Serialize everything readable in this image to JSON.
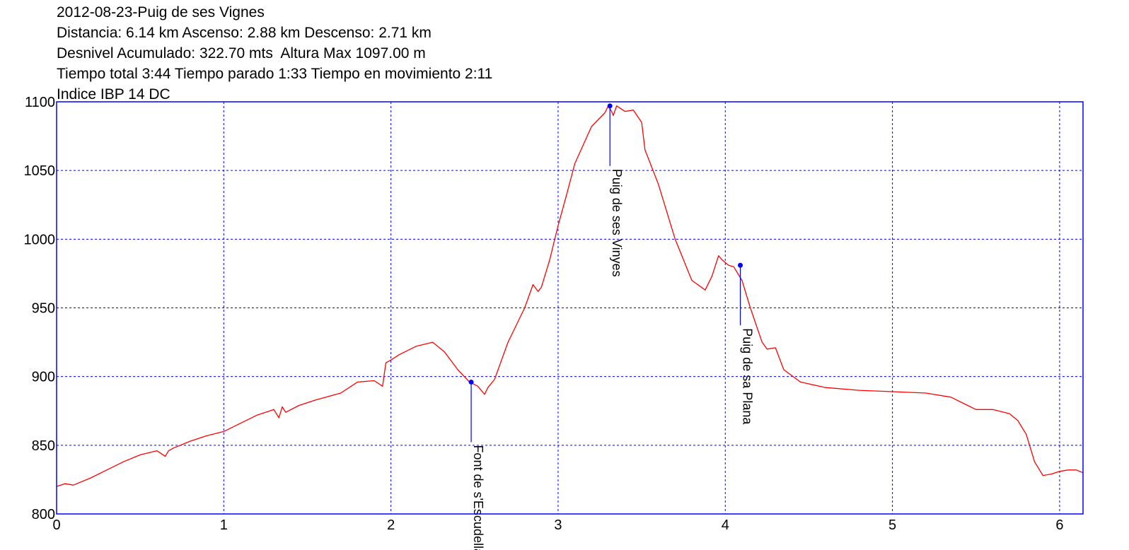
{
  "header": {
    "title": "2012-08-23-Puig de ses Vignes",
    "line2": "Distancia: 6.14 km Ascenso: 2.88 km Descenso: 2.71 km",
    "line3": "Desnivel Acumulado: 322.70 mts  Altura Max 1097.00 m",
    "line4": "Tiempo total 3:44 Tiempo parado 1:33 Tiempo en movimiento 2:11",
    "line5": "Indice IBP 14 DC"
  },
  "chart_data": {
    "type": "line",
    "title": "2012-08-23-Puig de ses Vignes",
    "xlabel": "",
    "ylabel": "",
    "xlim": [
      0,
      6.14
    ],
    "ylim": [
      800,
      1100
    ],
    "x_ticks": [
      0,
      1,
      2,
      3,
      4,
      5,
      6
    ],
    "y_ticks": [
      800,
      850,
      900,
      950,
      1000,
      1050,
      1100
    ],
    "grid": true,
    "colors": {
      "line": "#ff0000",
      "frame": "#0000ff",
      "grid": "#0000ff",
      "marker": "#0000ff"
    },
    "series": [
      {
        "x": [
          0,
          0.05,
          0.1,
          0.2,
          0.3,
          0.4,
          0.5,
          0.6,
          0.65,
          0.67,
          0.7,
          0.8,
          0.9,
          1.0,
          1.1,
          1.2,
          1.3,
          1.33,
          1.35,
          1.37,
          1.45,
          1.55,
          1.7,
          1.8,
          1.9,
          1.95,
          1.97,
          2.0,
          2.05,
          2.15,
          2.25,
          2.32,
          2.4,
          2.47,
          2.52,
          2.56,
          2.58,
          2.62,
          2.7,
          2.8,
          2.85,
          2.88,
          2.9,
          2.95,
          3.0,
          3.05,
          3.1,
          3.2,
          3.28,
          3.3,
          3.32,
          3.33,
          3.35,
          3.4,
          3.45,
          3.5,
          3.52,
          3.6,
          3.7,
          3.8,
          3.88,
          3.92,
          3.96,
          3.98,
          4.02,
          4.05,
          4.1,
          4.15,
          4.22,
          4.25,
          4.3,
          4.35,
          4.45,
          4.6,
          4.8,
          5.0,
          5.2,
          5.35,
          5.45,
          5.5,
          5.6,
          5.7,
          5.75,
          5.8,
          5.85,
          5.9,
          5.95,
          6.0,
          6.05,
          6.1,
          6.14
        ],
        "y": [
          820,
          822,
          821,
          826,
          832,
          838,
          843,
          846,
          842,
          846,
          848,
          853,
          857,
          860,
          866,
          872,
          876,
          870,
          878,
          874,
          879,
          883,
          888,
          896,
          897,
          893,
          910,
          912,
          916,
          922,
          925,
          918,
          905,
          896,
          893,
          887,
          892,
          898,
          925,
          950,
          967,
          962,
          965,
          985,
          1010,
          1032,
          1055,
          1082,
          1092,
          1097,
          1093,
          1090,
          1097,
          1093,
          1094,
          1085,
          1065,
          1040,
          1000,
          970,
          963,
          973,
          988,
          985,
          981,
          980,
          970,
          950,
          925,
          920,
          921,
          905,
          896,
          892,
          890,
          889,
          888,
          885,
          879,
          876,
          876,
          873,
          868,
          858,
          838,
          828,
          829,
          831,
          832,
          832,
          830
        ]
      }
    ],
    "waypoints": [
      {
        "label": "Font de s'Escudella",
        "x": 2.48,
        "y": 896
      },
      {
        "label": "Puig de ses Vinyes",
        "x": 3.31,
        "y": 1097
      },
      {
        "label": "Puig de sa Plana",
        "x": 4.09,
        "y": 981
      }
    ]
  }
}
